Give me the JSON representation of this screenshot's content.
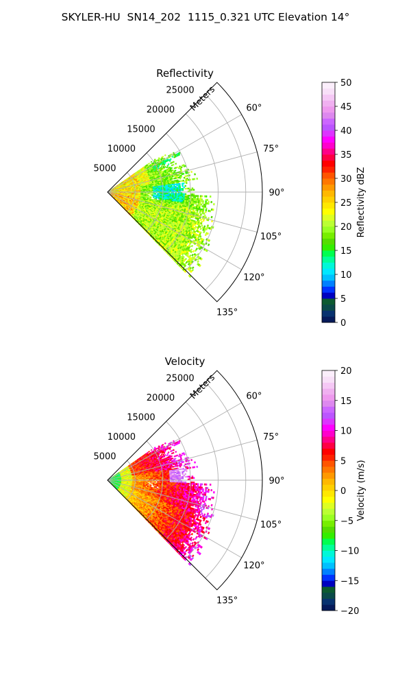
{
  "figure_title": "SKYLER-HU  SN14_202  1115_0.321 UTC Elevation 14°",
  "chart_data": [
    {
      "type": "heatmap",
      "subtype": "polar-sector",
      "title": "Reflectivity",
      "radial_label": "Meters",
      "radial_ticks": [
        5000,
        10000,
        15000,
        20000,
        25000
      ],
      "radial_tick_labels": [
        "5000",
        "10000",
        "15000",
        "20000",
        "25000"
      ],
      "rlim": [
        0,
        28000
      ],
      "angle_ticks": [
        60,
        75,
        90,
        105,
        120,
        135
      ],
      "angle_tick_labels": [
        "60°",
        "75°",
        "90°",
        "105°",
        "120°",
        "135°"
      ],
      "theta_range_deg": [
        45,
        135
      ],
      "grid": true,
      "data_extent": {
        "azimuth_deg": [
          55,
          136
        ],
        "range_m": [
          0,
          21500
        ]
      },
      "colorbar": {
        "label": "Reflectivity dBZ",
        "range": [
          0,
          50
        ],
        "ticks": [
          0,
          5,
          10,
          15,
          20,
          25,
          30,
          35,
          40,
          45,
          50
        ],
        "tick_labels": [
          "0",
          "5",
          "10",
          "15",
          "20",
          "25",
          "30",
          "35",
          "40",
          "45",
          "50"
        ],
        "colors": [
          "#061a5a",
          "#08326f",
          "#0a4a48",
          "#0c5a30",
          "#0000c0",
          "#0033ff",
          "#0080ff",
          "#00c0ff",
          "#00e8ff",
          "#00f8d8",
          "#00ff99",
          "#00ff50",
          "#33ee00",
          "#55dd00",
          "#77ee00",
          "#99ff22",
          "#bbff33",
          "#ddff22",
          "#ffff00",
          "#ffe800",
          "#ffd000",
          "#ffb800",
          "#ff9900",
          "#ff7700",
          "#ff5500",
          "#ff2200",
          "#ff0000",
          "#ff0044",
          "#ff0088",
          "#ff00cc",
          "#ff00ff",
          "#dd33ff",
          "#bb55ff",
          "#cc66ff",
          "#dd88ee",
          "#ee99ee",
          "#f0b0f0",
          "#f5c8f5",
          "#f8e0f8",
          "#fbeefb"
        ]
      }
    },
    {
      "type": "heatmap",
      "subtype": "polar-sector",
      "title": "Velocity",
      "radial_label": "Meters",
      "radial_ticks": [
        5000,
        10000,
        15000,
        20000,
        25000
      ],
      "radial_tick_labels": [
        "5000",
        "10000",
        "15000",
        "20000",
        "25000"
      ],
      "rlim": [
        0,
        28000
      ],
      "angle_ticks": [
        60,
        75,
        90,
        105,
        120,
        135
      ],
      "angle_tick_labels": [
        "60°",
        "75°",
        "90°",
        "105°",
        "120°",
        "135°"
      ],
      "theta_range_deg": [
        45,
        135
      ],
      "grid": true,
      "data_extent": {
        "azimuth_deg": [
          55,
          136
        ],
        "range_m": [
          0,
          21500
        ]
      },
      "colorbar": {
        "label": "Velocity (m/s)",
        "range": [
          -20,
          20
        ],
        "ticks": [
          -20,
          -15,
          -10,
          -5,
          0,
          5,
          10,
          15,
          20
        ],
        "tick_labels": [
          "−20",
          "−15",
          "−10",
          "−5",
          "0",
          "5",
          "10",
          "15",
          "20"
        ],
        "colors": [
          "#061a5a",
          "#08326f",
          "#0a4a48",
          "#0c5a30",
          "#0000c0",
          "#0033ff",
          "#0080ff",
          "#00c0ff",
          "#00e8ff",
          "#00f8d8",
          "#00ff99",
          "#00ff50",
          "#33ee00",
          "#55dd00",
          "#77ee00",
          "#99ff22",
          "#bbff33",
          "#ddff22",
          "#ffff00",
          "#ffe800",
          "#ffd000",
          "#ffb800",
          "#ff9900",
          "#ff7700",
          "#ff5500",
          "#ff2200",
          "#ff0000",
          "#ff0044",
          "#ff0088",
          "#ff00cc",
          "#ff00ff",
          "#dd33ff",
          "#bb55ff",
          "#cc66ff",
          "#dd88ee",
          "#ee99ee",
          "#f0b0f0",
          "#f5c8f5",
          "#f8e0f8",
          "#fbeefb"
        ]
      }
    }
  ]
}
